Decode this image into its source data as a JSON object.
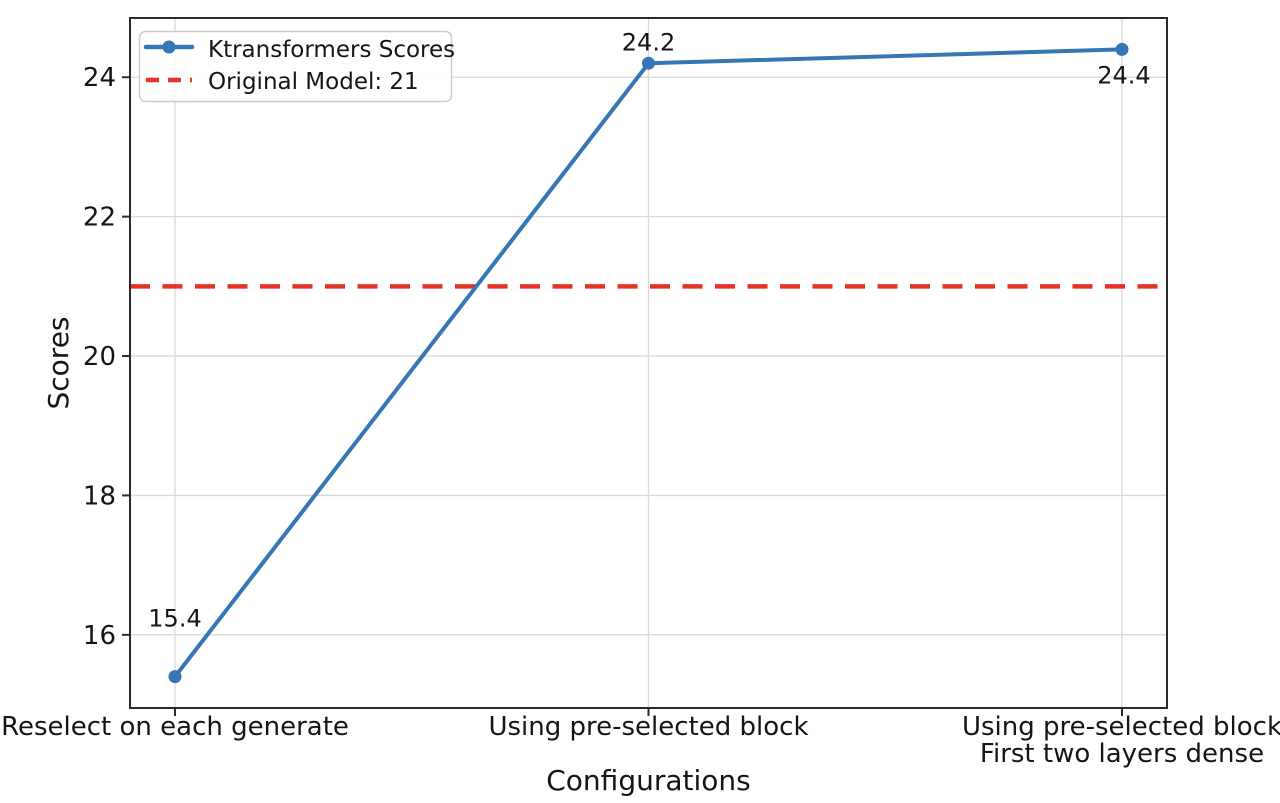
{
  "chart_data": {
    "type": "line",
    "title": "",
    "xlabel": "Configurations",
    "ylabel": "Scores",
    "categories": [
      "Reselect on each generate",
      "Using pre-selected block",
      "Using pre-selected block\nFirst two layers dense"
    ],
    "series": [
      {
        "name": "Ktransformers Scores",
        "values": [
          15.4,
          24.2,
          24.4
        ],
        "color": "#3676b5",
        "marker": "circle",
        "point_labels": [
          "15.4",
          "24.2",
          "24.4"
        ]
      }
    ],
    "reference_line": {
      "name": "Original Model: 21",
      "value": 21,
      "color": "#e63226",
      "style": "dashed"
    },
    "legend": {
      "position": "upper left",
      "entries": [
        "Ktransformers Scores",
        "Original Model: 21"
      ]
    },
    "yticks": [
      16,
      18,
      20,
      22,
      24
    ],
    "ylim": [
      14.95,
      24.85
    ],
    "grid": true,
    "colors": {
      "grid": "#d8d8d8",
      "spine": "#2a2a2a",
      "text": "#151515",
      "background": "#ffffff",
      "legend_border": "#cccccc"
    }
  }
}
